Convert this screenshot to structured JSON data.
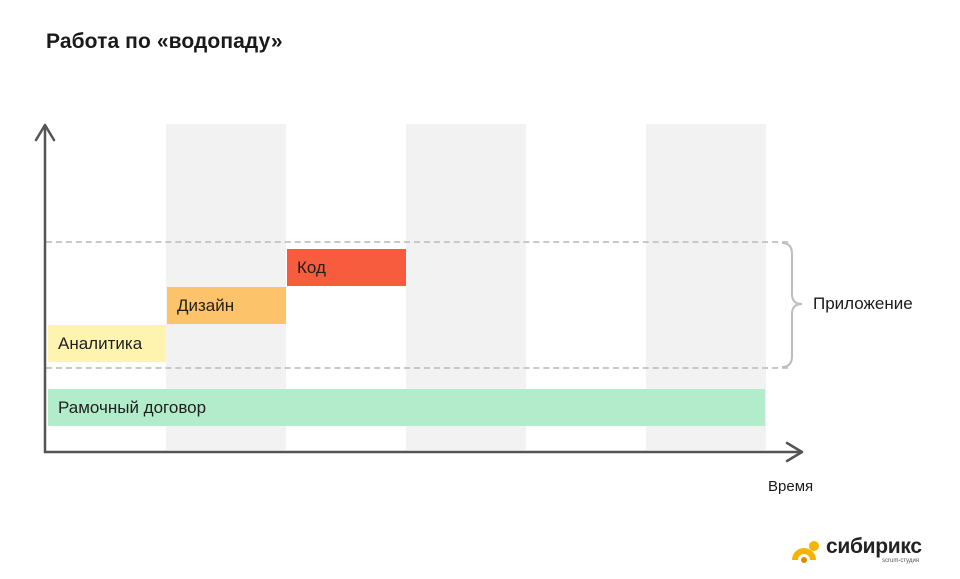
{
  "title": "Работа по «водопаду»",
  "bars": [
    {
      "label": "Аналитика",
      "color": "#fff3b0"
    },
    {
      "label": "Дизайн",
      "color": "#fcc36b"
    },
    {
      "label": "Код",
      "color": "#f75c3e"
    },
    {
      "label": "Рамочный договор",
      "color": "#b3ecca"
    }
  ],
  "group_label": "Приложение",
  "x_axis_label": "Время",
  "logo": {
    "word": "сибирикс",
    "subtitle": "scrum-студия",
    "accent": "#f5b400"
  }
}
